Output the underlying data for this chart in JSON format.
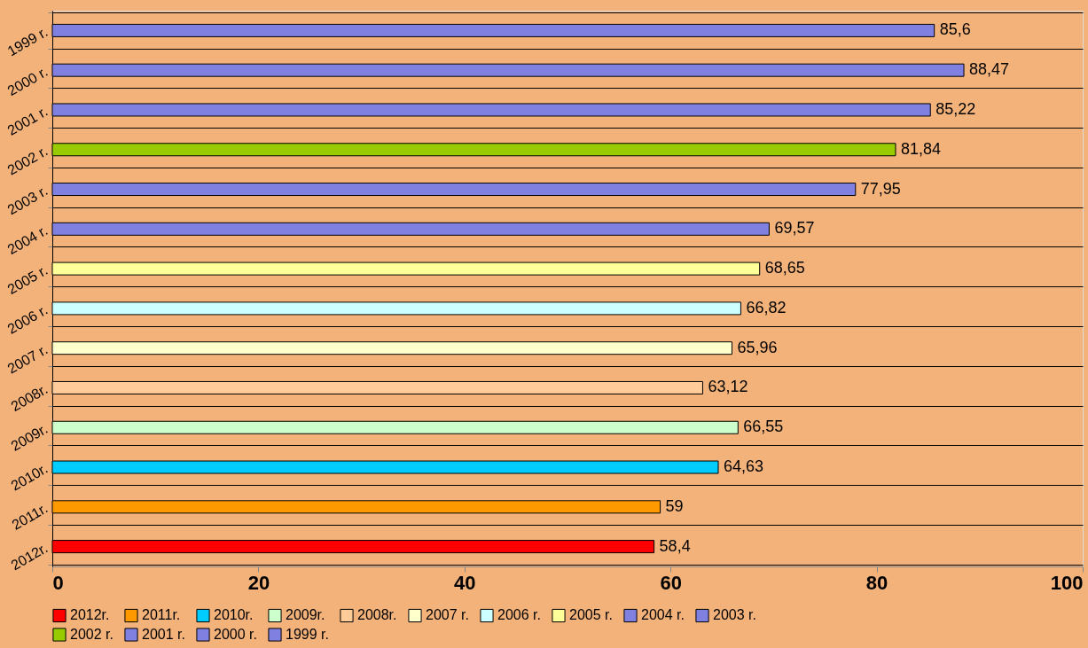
{
  "chart_data": {
    "type": "bar",
    "orientation": "horizontal",
    "categories": [
      "1999 r.",
      "2000 r.",
      "2001 r.",
      "2002 r.",
      "2003 r.",
      "2004 r.",
      "2005 r.",
      "2006 r.",
      "2007 r.",
      "2008r.",
      "2009r.",
      "2010r.",
      "2011r.",
      "2012r."
    ],
    "series": [
      {
        "name": "2012r.",
        "color": "#ff0000",
        "values": [
          null,
          null,
          null,
          null,
          null,
          null,
          null,
          null,
          null,
          null,
          null,
          null,
          null,
          58.4
        ],
        "value_labels": [
          null,
          null,
          null,
          null,
          null,
          null,
          null,
          null,
          null,
          null,
          null,
          null,
          null,
          "58,4"
        ]
      },
      {
        "name": "2011r.",
        "color": "#ff9900",
        "values": [
          null,
          null,
          null,
          null,
          null,
          null,
          null,
          null,
          null,
          null,
          null,
          null,
          59,
          null
        ],
        "value_labels": [
          null,
          null,
          null,
          null,
          null,
          null,
          null,
          null,
          null,
          null,
          null,
          null,
          "59",
          null
        ]
      },
      {
        "name": "2010r.",
        "color": "#00ccff",
        "values": [
          null,
          null,
          null,
          null,
          null,
          null,
          null,
          null,
          null,
          null,
          null,
          64.63,
          null,
          null
        ],
        "value_labels": [
          null,
          null,
          null,
          null,
          null,
          null,
          null,
          null,
          null,
          null,
          null,
          "64,63",
          null,
          null
        ]
      },
      {
        "name": "2009r.",
        "color": "#ccffcc",
        "values": [
          null,
          null,
          null,
          null,
          null,
          null,
          null,
          null,
          null,
          null,
          66.55,
          null,
          null,
          null
        ],
        "value_labels": [
          null,
          null,
          null,
          null,
          null,
          null,
          null,
          null,
          null,
          null,
          "66,55",
          null,
          null,
          null
        ]
      },
      {
        "name": "2008r.",
        "color": "#ffcc99",
        "values": [
          null,
          null,
          null,
          null,
          null,
          null,
          null,
          null,
          null,
          63.12,
          null,
          null,
          null,
          null
        ],
        "value_labels": [
          null,
          null,
          null,
          null,
          null,
          null,
          null,
          null,
          null,
          "63,12",
          null,
          null,
          null,
          null
        ]
      },
      {
        "name": "2007 r.",
        "color": "#ffffcc",
        "values": [
          null,
          null,
          null,
          null,
          null,
          null,
          null,
          null,
          65.96,
          null,
          null,
          null,
          null,
          null
        ],
        "value_labels": [
          null,
          null,
          null,
          null,
          null,
          null,
          null,
          null,
          "65,96",
          null,
          null,
          null,
          null,
          null
        ]
      },
      {
        "name": "2006 r.",
        "color": "#ccffff",
        "values": [
          null,
          null,
          null,
          null,
          null,
          null,
          null,
          66.82,
          null,
          null,
          null,
          null,
          null,
          null
        ],
        "value_labels": [
          null,
          null,
          null,
          null,
          null,
          null,
          null,
          "66,82",
          null,
          null,
          null,
          null,
          null,
          null
        ]
      },
      {
        "name": "2005 r.",
        "color": "#ffff99",
        "values": [
          null,
          null,
          null,
          null,
          null,
          null,
          68.65,
          null,
          null,
          null,
          null,
          null,
          null,
          null
        ],
        "value_labels": [
          null,
          null,
          null,
          null,
          null,
          null,
          "68,65",
          null,
          null,
          null,
          null,
          null,
          null,
          null
        ]
      },
      {
        "name": "2004 r.",
        "color": "#8080e0",
        "values": [
          null,
          null,
          null,
          null,
          null,
          69.57,
          null,
          null,
          null,
          null,
          null,
          null,
          null,
          null
        ],
        "value_labels": [
          null,
          null,
          null,
          null,
          null,
          "69,57",
          null,
          null,
          null,
          null,
          null,
          null,
          null,
          null
        ]
      },
      {
        "name": "2003 r.",
        "color": "#8080e0",
        "values": [
          null,
          null,
          null,
          null,
          77.95,
          null,
          null,
          null,
          null,
          null,
          null,
          null,
          null,
          null
        ],
        "value_labels": [
          null,
          null,
          null,
          null,
          "77,95",
          null,
          null,
          null,
          null,
          null,
          null,
          null,
          null,
          null
        ]
      },
      {
        "name": "2002 r.",
        "color": "#99cc00",
        "values": [
          null,
          null,
          null,
          81.84,
          null,
          null,
          null,
          null,
          null,
          null,
          null,
          null,
          null,
          null
        ],
        "value_labels": [
          null,
          null,
          null,
          "81,84",
          null,
          null,
          null,
          null,
          null,
          null,
          null,
          null,
          null,
          null
        ]
      },
      {
        "name": "2001 r.",
        "color": "#8080e0",
        "values": [
          null,
          null,
          85.22,
          null,
          null,
          null,
          null,
          null,
          null,
          null,
          null,
          null,
          null,
          null
        ],
        "value_labels": [
          null,
          null,
          "85,22",
          null,
          null,
          null,
          null,
          null,
          null,
          null,
          null,
          null,
          null,
          null
        ]
      },
      {
        "name": "2000 r.",
        "color": "#8080e0",
        "values": [
          null,
          88.47,
          null,
          null,
          null,
          null,
          null,
          null,
          null,
          null,
          null,
          null,
          null,
          null
        ],
        "value_labels": [
          null,
          "88,47",
          null,
          null,
          null,
          null,
          null,
          null,
          null,
          null,
          null,
          null,
          null,
          null
        ]
      },
      {
        "name": "1999 r.",
        "color": "#8080e0",
        "values": [
          85.6,
          null,
          null,
          null,
          null,
          null,
          null,
          null,
          null,
          null,
          null,
          null,
          null,
          null
        ],
        "value_labels": [
          "85,6",
          null,
          null,
          null,
          null,
          null,
          null,
          null,
          null,
          null,
          null,
          null,
          null,
          null
        ]
      }
    ],
    "xlim": [
      0,
      100
    ],
    "xticks": [
      0,
      20,
      40,
      60,
      80,
      100
    ],
    "grid": "y",
    "legend": "bottom"
  }
}
